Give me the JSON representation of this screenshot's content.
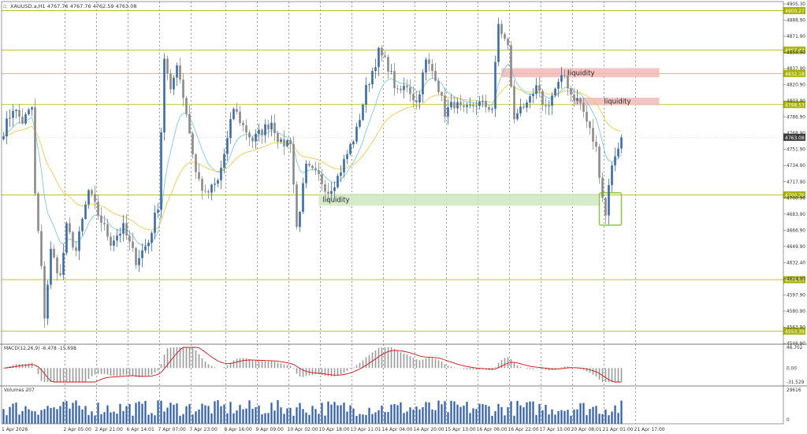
{
  "header": {
    "symbol_text": "XAUUSD.a,H1  4767.76 4767.76 4762.59 4763.08",
    "close_label": "▫"
  },
  "colors": {
    "level_line": "#b5b800",
    "level_tag_bg": "#a8b400",
    "price_tag_bg": "#3c3c3c",
    "bull": "#3b6aa8",
    "bear": "#8a8a8a",
    "ma_fast": "#7ec8e3",
    "ma_slow": "#f2c84b",
    "liquidity_high": "#f2b8b8",
    "liquidity_low": "#cfe8c0",
    "sweep_box": "#8dc63f",
    "macd_hist": "#9a9a9a",
    "macd_signal": "#d01010",
    "volume": "#2f5fa8",
    "grid": "#555555"
  },
  "price_axis": {
    "min": 4540,
    "max": 4910,
    "ticks": [
      "4905.30",
      "4888.90",
      "4871.90",
      "4854.90",
      "4837.90",
      "4820.90",
      "4803.90",
      "4786.90",
      "4768.90",
      "4751.90",
      "4734.90",
      "4717.90",
      "4700.90",
      "4683.90",
      "4666.90",
      "4649.90",
      "4632.40",
      "4614.90",
      "4597.90",
      "4580.90",
      "4563.90",
      "4546.90"
    ],
    "levels": [
      {
        "value": 4900.27,
        "label": "4900.27"
      },
      {
        "value": 4857.43,
        "label": "4857.43"
      },
      {
        "value": 4832.18,
        "label": "4832.18"
      },
      {
        "value": 4798.53,
        "label": "4798.53"
      },
      {
        "value": 4700.76,
        "label": "4700.76"
      },
      {
        "value": 4608.99,
        "label": "4608.99"
      },
      {
        "value": 4553.39,
        "label": "4553.39"
      }
    ],
    "current": {
      "value": 4763.08,
      "label": "4763.08"
    }
  },
  "zones": [
    {
      "label": "liquidity",
      "kind": "high",
      "start": 158,
      "end": 208,
      "top": 4838,
      "bottom": 4828
    },
    {
      "label": "liquidity",
      "kind": "high",
      "start": 181,
      "end": 208,
      "top": 4806,
      "bottom": 4798
    },
    {
      "label": "liquidity",
      "kind": "low",
      "start": 100,
      "end": 189,
      "top": 4702,
      "bottom": 4689
    },
    {
      "label": "",
      "kind": "sweep",
      "start": 189,
      "end": 196,
      "top": 4703,
      "bottom": 4668
    }
  ],
  "time_axis": {
    "labels": [
      {
        "i": 0,
        "text": "1 Apr 2026"
      },
      {
        "i": 12,
        "text": "2 Apr 05:00"
      },
      {
        "i": 22,
        "text": "2 Apr 21:00"
      },
      {
        "i": 32,
        "text": "6 Apr 14:01"
      },
      {
        "i": 42,
        "text": "7 Apr 07:00"
      },
      {
        "i": 52,
        "text": "7 Apr 23:00"
      },
      {
        "i": 63,
        "text": "8 Apr 16:00"
      },
      {
        "i": 73,
        "text": "9 Apr 09:00"
      },
      {
        "i": 83,
        "text": "10 Apr 02:00"
      },
      {
        "i": 93,
        "text": "10 Apr 18:00"
      },
      {
        "i": 103,
        "text": "13 Apr 11:01"
      },
      {
        "i": 113,
        "text": "14 Apr 04:00"
      },
      {
        "i": 123,
        "text": "14 Apr 20:00"
      },
      {
        "i": 133,
        "text": "15 Apr 13:00"
      },
      {
        "i": 143,
        "text": "16 Apr 06:00"
      },
      {
        "i": 153,
        "text": "16 Apr 22:00"
      },
      {
        "i": 163,
        "text": "17 Apr 15:00"
      },
      {
        "i": 173,
        "text": "20 Apr 08:01"
      },
      {
        "i": 183,
        "text": "21 Apr 01:00"
      },
      {
        "i": 193,
        "text": "21 Apr 17:00"
      }
    ]
  },
  "chart_data": {
    "type": "candlestick",
    "title": "XAUUSD.a,H1",
    "ohlc_keyframes": [
      [
        0,
        4770
      ],
      [
        3,
        4795
      ],
      [
        6,
        4780
      ],
      [
        9,
        4795
      ],
      [
        10,
        4700
      ],
      [
        12,
        4620
      ],
      [
        13,
        4570
      ],
      [
        15,
        4640
      ],
      [
        18,
        4612
      ],
      [
        20,
        4665
      ],
      [
        23,
        4640
      ],
      [
        27,
        4705
      ],
      [
        30,
        4680
      ],
      [
        34,
        4650
      ],
      [
        38,
        4665
      ],
      [
        42,
        4630
      ],
      [
        46,
        4650
      ],
      [
        49,
        4690
      ],
      [
        51,
        4850
      ],
      [
        53,
        4810
      ],
      [
        55,
        4845
      ],
      [
        58,
        4790
      ],
      [
        61,
        4725
      ],
      [
        64,
        4700
      ],
      [
        68,
        4715
      ],
      [
        71,
        4760
      ],
      [
        73,
        4795
      ],
      [
        76,
        4775
      ],
      [
        79,
        4760
      ],
      [
        82,
        4770
      ],
      [
        85,
        4780
      ],
      [
        88,
        4755
      ],
      [
        91,
        4760
      ],
      [
        93,
        4665
      ],
      [
        96,
        4730
      ],
      [
        100,
        4720
      ],
      [
        103,
        4705
      ],
      [
        106,
        4720
      ],
      [
        109,
        4745
      ],
      [
        112,
        4770
      ],
      [
        115,
        4815
      ],
      [
        119,
        4855
      ],
      [
        122,
        4840
      ],
      [
        125,
        4810
      ],
      [
        128,
        4820
      ],
      [
        131,
        4800
      ],
      [
        134,
        4845
      ],
      [
        137,
        4830
      ],
      [
        140,
        4790
      ],
      [
        143,
        4800
      ],
      [
        146,
        4790
      ],
      [
        150,
        4800
      ],
      [
        155,
        4795
      ],
      [
        157,
        4885
      ],
      [
        160,
        4860
      ],
      [
        162,
        4780
      ],
      [
        164,
        4800
      ],
      [
        166,
        4795
      ],
      [
        169,
        4815
      ],
      [
        172,
        4795
      ],
      [
        175,
        4815
      ],
      [
        178,
        4830
      ],
      [
        180,
        4810
      ],
      [
        183,
        4800
      ],
      [
        186,
        4770
      ],
      [
        188,
        4750
      ],
      [
        190,
        4700
      ],
      [
        191,
        4678
      ],
      [
        192,
        4715
      ],
      [
        194,
        4745
      ],
      [
        196,
        4763.08
      ]
    ],
    "candle_count": 197,
    "macd": {
      "label": "MACD(12,26,9) -6.478 -15.698",
      "ticks": [
        "46.702",
        "0.00",
        "-31.529"
      ],
      "max": 46.702,
      "min": -31.529
    },
    "volume": {
      "label": "Volumes 207",
      "ticks": [
        "29616",
        "0"
      ],
      "max": 29616
    }
  }
}
